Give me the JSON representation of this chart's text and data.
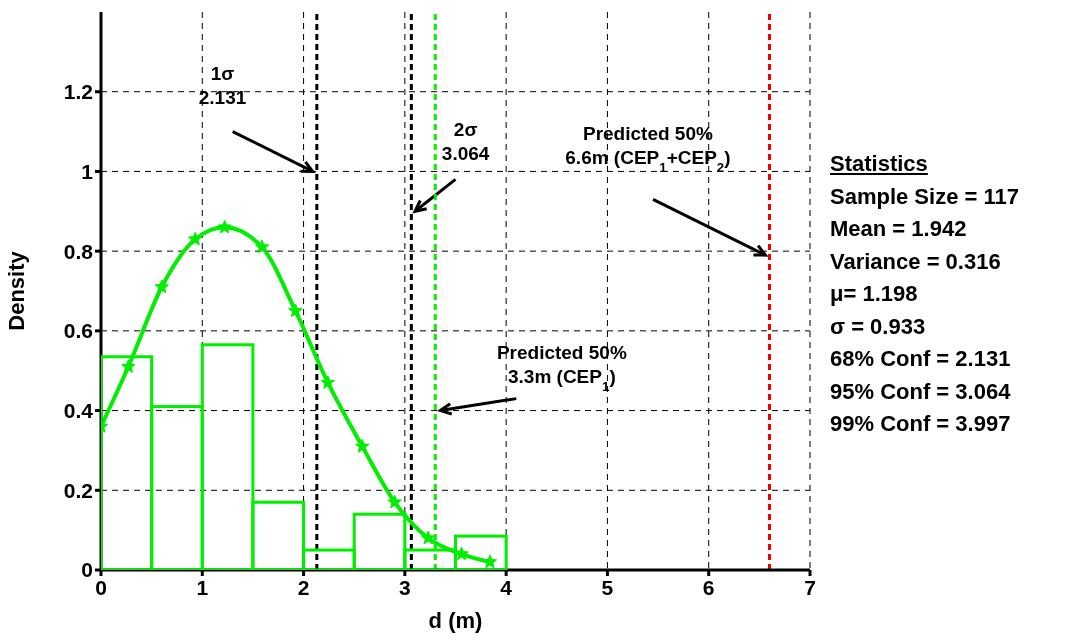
{
  "chart_data": {
    "type": "histogram",
    "xlabel": "d (m)",
    "ylabel": "Density",
    "bins": [
      0,
      0.5,
      1,
      1.5,
      2,
      2.5,
      3,
      3.5,
      4
    ],
    "values": [
      0.535,
      0.41,
      0.565,
      0.17,
      0.05,
      0.14,
      0.05,
      0.085
    ],
    "color": "#00ee00",
    "series": [
      {
        "type": "line",
        "color": "#00ee00",
        "marker": "star",
        "x": [
          0,
          0.27,
          0.6,
          0.93,
          1.22,
          1.59,
          1.92,
          2.24,
          2.58,
          2.9,
          3.23,
          3.56,
          3.84
        ],
        "values": [
          0.36,
          0.51,
          0.71,
          0.83,
          0.86,
          0.81,
          0.65,
          0.47,
          0.31,
          0.17,
          0.08,
          0.04,
          0.02
        ]
      }
    ],
    "xlim": [
      0,
      7
    ],
    "xticks": [
      0,
      1,
      2,
      3,
      4,
      5,
      6,
      7
    ],
    "ylim": [
      0,
      1.4
    ],
    "yticks": [
      0,
      0.2,
      0.4,
      0.6,
      0.8,
      1,
      1.2
    ],
    "grid": true,
    "ref_lines": [
      {
        "axis": "x",
        "value": 2.131,
        "label": "1σ\n2.131",
        "color": "#000000",
        "line_style": "dashed"
      },
      {
        "axis": "x",
        "value": 3.064,
        "label": "2σ\n3.064",
        "color": "#000000",
        "line_style": "dashed"
      },
      {
        "axis": "x",
        "value": 3.3,
        "label": "Predicted 50%\n3.3m (CEP$_{1}$)",
        "color": "#00ee00",
        "line_style": "dashed"
      },
      {
        "axis": "x",
        "value": 6.6,
        "label": "Predicted 50%\n6.6m (CEP$_{1}$+CEP$_{2}$)",
        "color": "#ee0000",
        "line_style": "dashed"
      }
    ],
    "annotations": [
      "Statistics",
      "Sample Size = 117",
      "Mean = 1.942",
      "Variance = 0.316",
      "μ= 1.198",
      "σ = 0.933",
      "68% Conf = 2.131",
      "95% Conf = 3.064",
      "99% Conf = 3.997"
    ]
  }
}
